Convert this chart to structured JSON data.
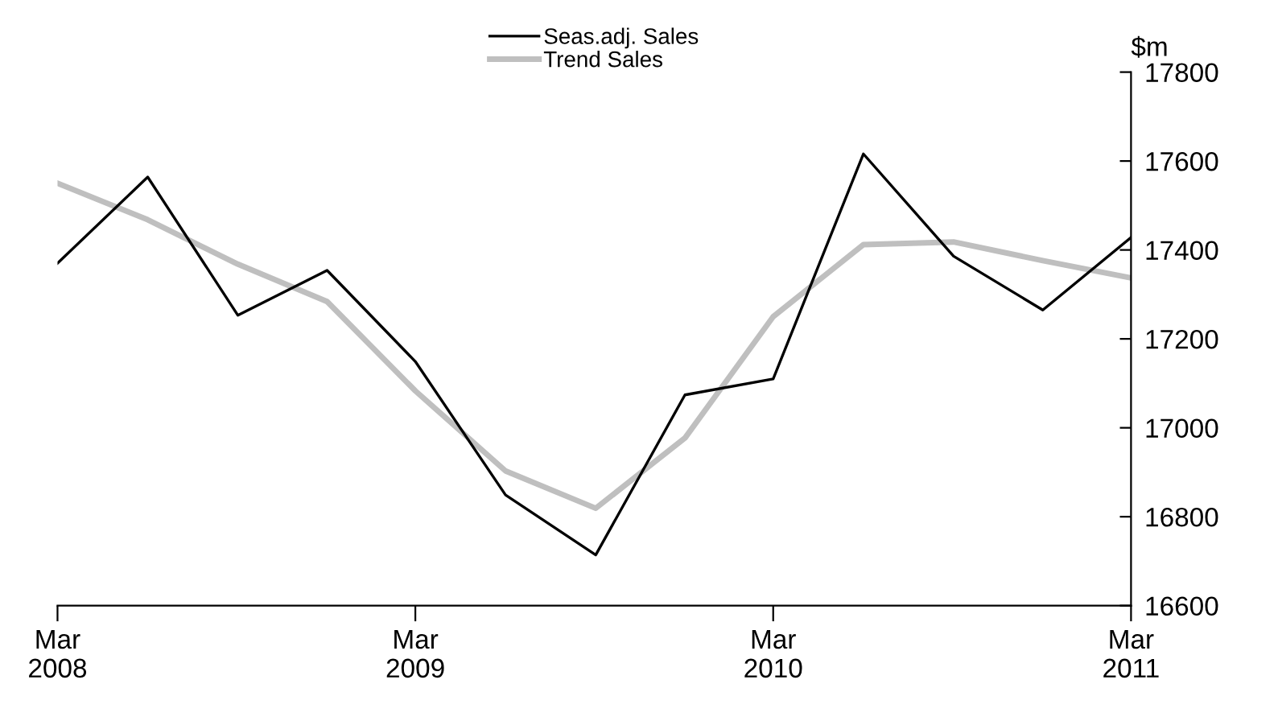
{
  "chart_data": {
    "type": "line",
    "ylabel": "$m",
    "x": [
      "2008-03",
      "2008-06",
      "2008-09",
      "2008-12",
      "2009-03",
      "2009-06",
      "2009-09",
      "2009-12",
      "2010-03",
      "2010-06",
      "2010-09",
      "2010-12",
      "2011-03"
    ],
    "series": [
      {
        "name": "Seas.adj. Sales",
        "color": "#000000",
        "values": [
          17370,
          17564,
          17253,
          17354,
          17149,
          16849,
          16714,
          17074,
          17110,
          17616,
          17386,
          17265,
          17428
        ]
      },
      {
        "name": "Trend Sales",
        "color": "#bfbfbf",
        "values": [
          17550,
          17468,
          17368,
          17284,
          17083,
          16903,
          16819,
          16977,
          17250,
          17412,
          17418,
          17376,
          17337
        ]
      }
    ],
    "xlim": [
      "2008-03",
      "2011-03"
    ],
    "xticks": [
      {
        "value": "2008-03",
        "label": "Mar\n2008"
      },
      {
        "value": "2009-03",
        "label": "Mar\n2009"
      },
      {
        "value": "2010-03",
        "label": "Mar\n2010"
      },
      {
        "value": "2011-03",
        "label": "Mar\n2011"
      }
    ],
    "ylim": [
      16600,
      17800
    ],
    "yticks": [
      16600,
      16800,
      17000,
      17200,
      17400,
      17600,
      17800
    ],
    "grid": false,
    "legend": "top",
    "marker": "none",
    "line_style": "solid"
  }
}
